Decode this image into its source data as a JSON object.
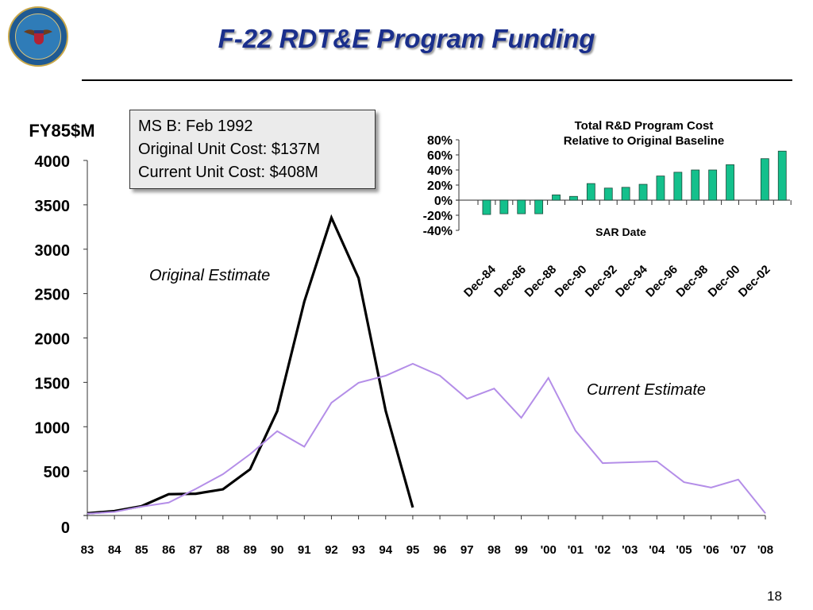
{
  "slide": {
    "title": "F-22 RDT&E Program Funding",
    "page_number": "18",
    "logo": "department-of-defense-seal",
    "info_box": {
      "lines": [
        "MS B: Feb 1992",
        "Original Unit Cost: $137M",
        "Current Unit Cost: $408M"
      ]
    }
  },
  "chart_data": [
    {
      "type": "line",
      "title": "",
      "ylabel": "FY85$M",
      "xlabel": "",
      "ylim": [
        0,
        4000
      ],
      "yticks": [
        "0",
        "500",
        "1000",
        "1500",
        "2000",
        "2500",
        "3000",
        "3500",
        "4000"
      ],
      "x": [
        "83",
        "84",
        "85",
        "86",
        "87",
        "88",
        "89",
        "90",
        "91",
        "92",
        "93",
        "94",
        "95",
        "96",
        "97",
        "98",
        "99",
        "'00",
        "'01",
        "'02",
        "'03",
        "'04",
        "'05",
        "'06",
        "'07",
        "'08"
      ],
      "grid": false,
      "series": [
        {
          "name": "Original Estimate",
          "color": "#000000",
          "values": [
            25,
            50,
            105,
            240,
            245,
            295,
            520,
            1175,
            2410,
            3355,
            2675,
            1180,
            90
          ]
        },
        {
          "name": "Current Estimate",
          "color": "#b48ee8",
          "values": [
            20,
            40,
            100,
            145,
            300,
            465,
            690,
            950,
            775,
            1270,
            1495,
            1575,
            1710,
            1575,
            1315,
            1430,
            1100,
            1550,
            955,
            590,
            600,
            610,
            375,
            315,
            405,
            25
          ]
        }
      ],
      "annotations": [
        "Original Estimate",
        "Current Estimate"
      ]
    },
    {
      "type": "bar",
      "title": "Total R&D Program Cost\nRelative to Original Baseline",
      "title_lines": [
        "Total R&D Program Cost",
        "Relative to Original Baseline"
      ],
      "xlabel": "SAR Date",
      "ylabel": "",
      "ylim": [
        -40,
        80
      ],
      "yticks": [
        "80%",
        "60%",
        "40%",
        "20%",
        "0%",
        "-20%",
        "-40%"
      ],
      "tick_labels": [
        "Dec-84",
        "Dec-86",
        "Dec-88",
        "Dec-90",
        "Dec-92",
        "Dec-94",
        "Dec-96",
        "Dec-98",
        "Dec-00",
        "Dec-02"
      ],
      "bar_color": "#14c08c",
      "values": [
        -19,
        -18,
        -18,
        -18,
        7,
        5,
        22,
        16,
        17,
        21,
        32,
        37,
        40,
        40,
        47,
        null,
        55,
        65
      ]
    }
  ]
}
